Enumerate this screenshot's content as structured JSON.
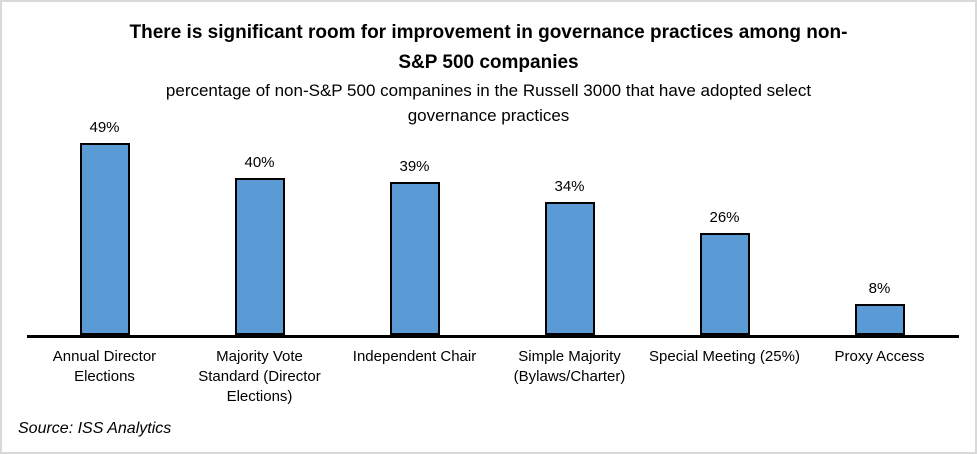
{
  "chart_data": {
    "type": "bar",
    "title": "There is significant room for improvement in governance practices among non-\nS&P 500 companies",
    "subtitle": "percentage of non-S&P 500 companines in the Russell 3000 that have adopted select\ngovernance practices",
    "categories": [
      "Annual Director\nElections",
      "Majority Vote\nStandard (Director\nElections)",
      "Independent Chair",
      "Simple Majority\n(Bylaws/Charter)",
      "Special Meeting (25%)",
      "Proxy Access"
    ],
    "values": [
      49,
      40,
      39,
      34,
      26,
      8
    ],
    "value_labels": [
      "49%",
      "40%",
      "39%",
      "34%",
      "26%",
      "8%"
    ],
    "xlabel": "",
    "ylabel": "",
    "ylim": [
      0,
      55
    ],
    "grid": false,
    "legend": false,
    "bar_color": "#5B9BD5",
    "bar_border_color": "#000000",
    "axis_color": "#000000"
  },
  "source": {
    "label": "Source: ISS Analytics"
  }
}
